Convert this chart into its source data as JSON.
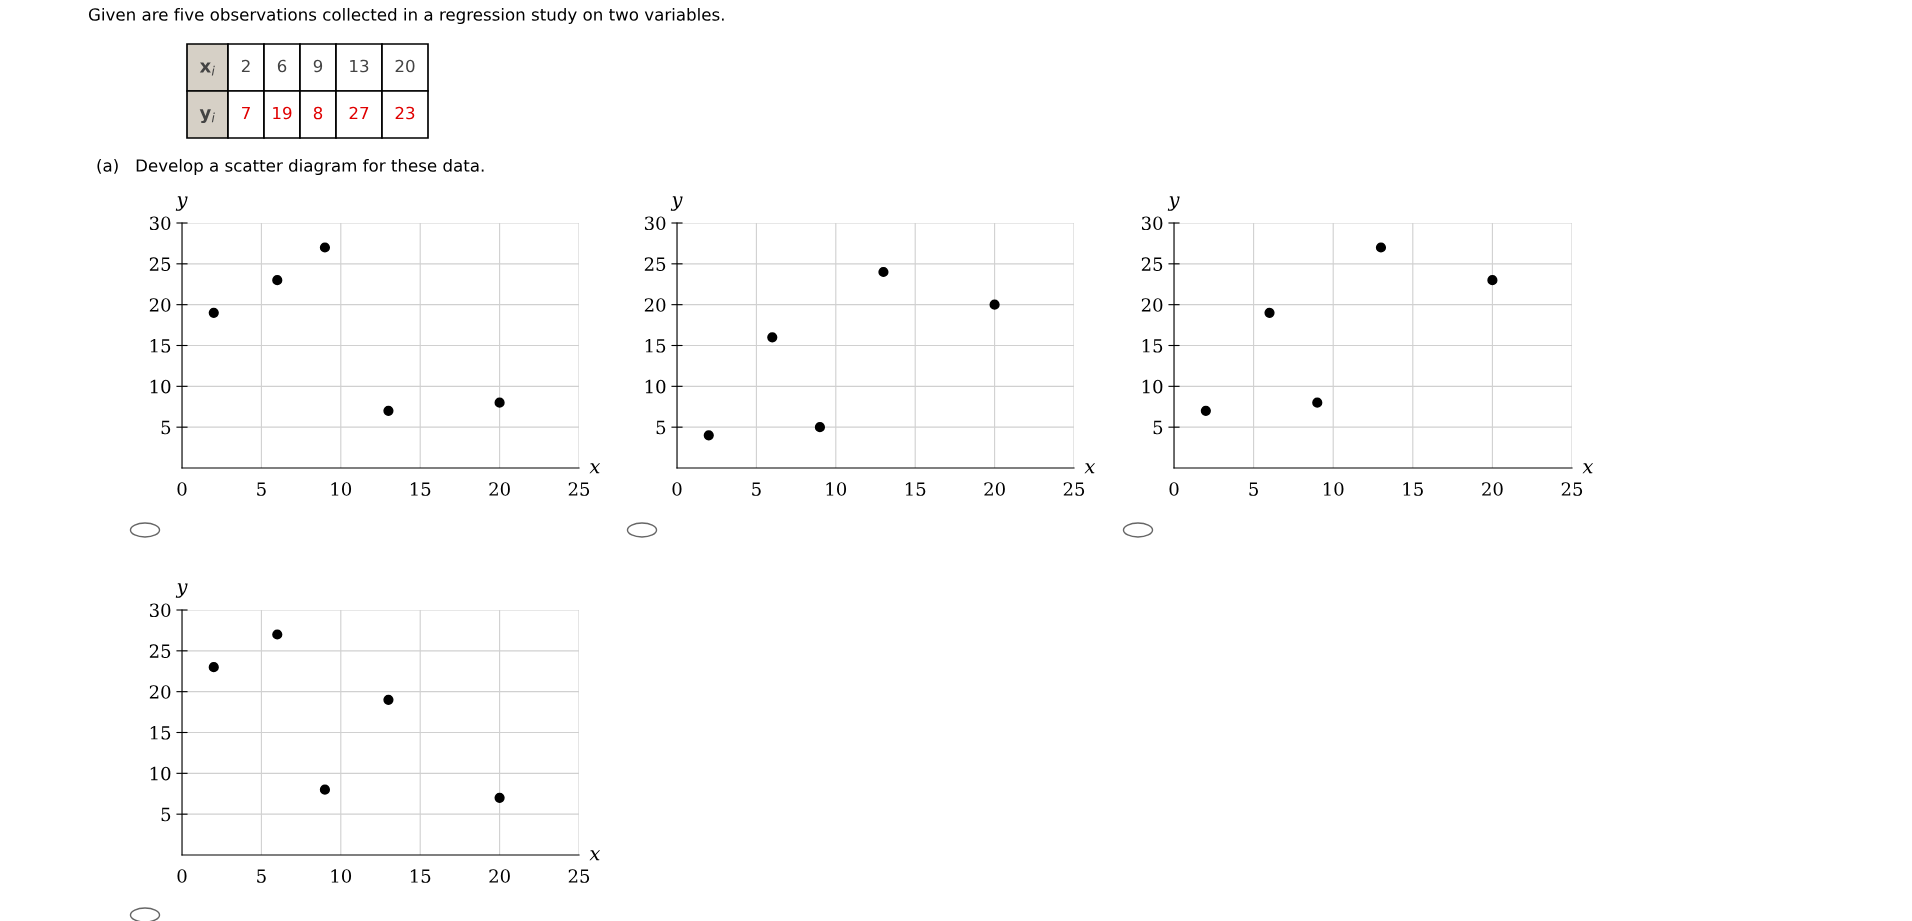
{
  "chart_data": [
    {
      "type": "other",
      "title": "Given are five observations collected in a regression study on two variables.",
      "subtitle": "(a)   Develop a scatter diagram for these data.",
      "annotations": [
        "x$_{i}$",
        "2",
        "6",
        "9",
        "13",
        "20",
        "y$_{i}$",
        "7",
        "19",
        "8",
        "27",
        "23"
      ]
    },
    {
      "type": "scatter",
      "xlabel": "x",
      "ylabel": "y",
      "x": [
        2,
        6,
        9,
        13,
        20
      ],
      "series": [
        {
          "color": "#000000",
          "values": [
            19,
            23,
            27,
            7,
            8
          ]
        }
      ],
      "xlim": [
        0,
        25
      ],
      "ylim": [
        0,
        30
      ],
      "xticks": [
        0,
        5,
        10,
        15,
        20,
        25
      ],
      "yticks": [
        5,
        10,
        15,
        20,
        25,
        30
      ],
      "grid": true,
      "marker": "circle"
    },
    {
      "type": "scatter",
      "xlabel": "x",
      "ylabel": "y",
      "x": [
        2,
        6,
        9,
        13,
        20
      ],
      "series": [
        {
          "color": "#000000",
          "values": [
            4,
            16,
            5,
            24,
            20
          ]
        }
      ],
      "xlim": [
        0,
        25
      ],
      "ylim": [
        0,
        30
      ],
      "xticks": [
        0,
        5,
        10,
        15,
        20,
        25
      ],
      "yticks": [
        5,
        10,
        15,
        20,
        25,
        30
      ],
      "grid": true,
      "marker": "circle"
    },
    {
      "type": "scatter",
      "xlabel": "x",
      "ylabel": "y",
      "x": [
        2,
        6,
        9,
        13,
        20
      ],
      "series": [
        {
          "color": "#000000",
          "values": [
            7,
            19,
            8,
            27,
            23
          ]
        }
      ],
      "xlim": [
        0,
        25
      ],
      "ylim": [
        0,
        30
      ],
      "xticks": [
        0,
        5,
        10,
        15,
        20,
        25
      ],
      "yticks": [
        5,
        10,
        15,
        20,
        25,
        30
      ],
      "grid": true,
      "marker": "circle"
    },
    {
      "type": "scatter",
      "xlabel": "x",
      "ylabel": "y",
      "x": [
        2,
        6,
        9,
        13,
        20
      ],
      "series": [
        {
          "color": "#000000",
          "values": [
            23,
            27,
            8,
            19,
            7
          ]
        }
      ],
      "xlim": [
        0,
        25
      ],
      "ylim": [
        0,
        30
      ],
      "xticks": [
        0,
        5,
        10,
        15,
        20,
        25
      ],
      "yticks": [
        5,
        10,
        15,
        20,
        25,
        30
      ],
      "grid": true,
      "marker": "circle"
    }
  ]
}
